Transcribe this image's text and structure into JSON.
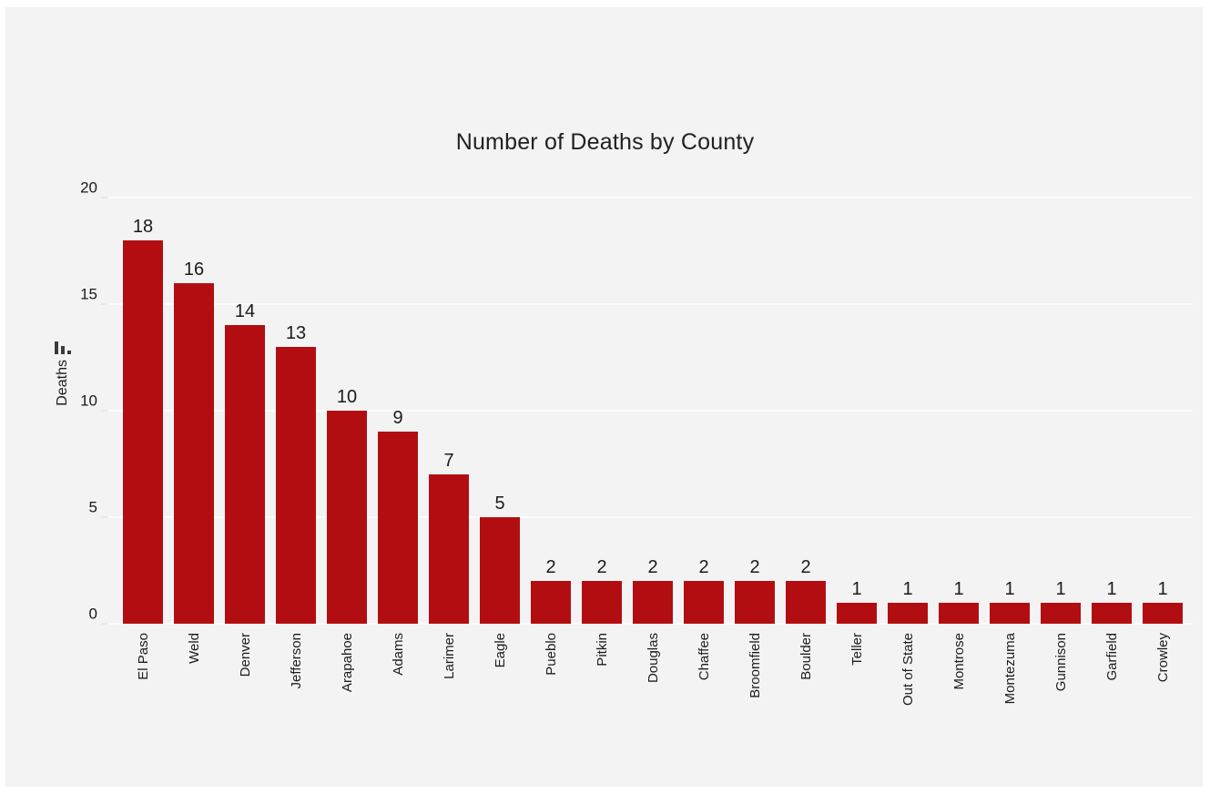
{
  "page": {
    "background_color": "#f3f3f4",
    "outer_border_color": "#ffffff"
  },
  "icons": {
    "y_axis_icon": "descending-bar-chart-icon",
    "y_axis_icon_color": "#3b3b3b"
  },
  "chart_data": {
    "type": "bar",
    "title": "Number of Deaths by County",
    "xlabel": "",
    "ylabel": "Deaths",
    "categories": [
      "El Paso",
      "Weld",
      "Denver",
      "Jefferson",
      "Arapahoe",
      "Adams",
      "Larimer",
      "Eagle",
      "Pueblo",
      "Pitkin",
      "Douglas",
      "Chaffee",
      "Broomfield",
      "Boulder",
      "Teller",
      "Out of State",
      "Montrose",
      "Montezuma",
      "Gunnison",
      "Garfield",
      "Crowley"
    ],
    "values": [
      18,
      16,
      14,
      13,
      10,
      9,
      7,
      5,
      2,
      2,
      2,
      2,
      2,
      2,
      1,
      1,
      1,
      1,
      1,
      1,
      1
    ],
    "value_labels_shown": true,
    "yticks": [
      0,
      5,
      10,
      15,
      20
    ],
    "ylim": [
      0,
      20
    ],
    "grid": true,
    "legend": "none",
    "bar_color": "#b20e12",
    "gridline_color": "#fbfbfc",
    "text_color": "#1b1b1b"
  }
}
